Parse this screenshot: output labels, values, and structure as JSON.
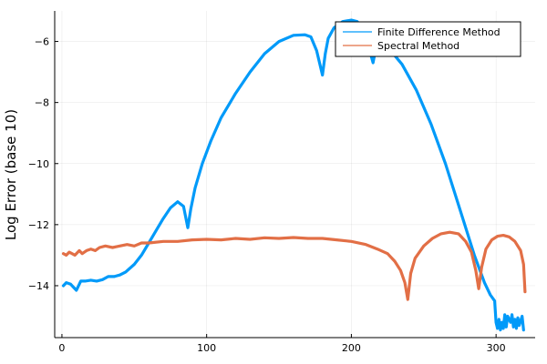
{
  "chart_data": {
    "type": "line",
    "title": "",
    "xlabel": "",
    "ylabel": "Log Error (base 10)",
    "xlim": [
      -5,
      327
    ],
    "ylim": [
      -15.7,
      -5
    ],
    "x_ticks": [
      0,
      100,
      200,
      300
    ],
    "x_tick_labels": [
      "0",
      "100",
      "200",
      "300"
    ],
    "y_ticks": [
      -14,
      -12,
      -10,
      -8,
      -6
    ],
    "y_tick_labels": [
      "−14",
      "−12",
      "−10",
      "−8",
      "−6"
    ],
    "grid": true,
    "legend_position": "top-right",
    "series": [
      {
        "name": "Finite Difference Method",
        "color": "#009af9",
        "points": [
          [
            1,
            -14.0
          ],
          [
            3,
            -13.9
          ],
          [
            6,
            -13.95
          ],
          [
            8,
            -14.05
          ],
          [
            10,
            -14.15
          ],
          [
            13,
            -13.85
          ],
          [
            16,
            -13.85
          ],
          [
            20,
            -13.82
          ],
          [
            24,
            -13.85
          ],
          [
            28,
            -13.8
          ],
          [
            32,
            -13.7
          ],
          [
            36,
            -13.7
          ],
          [
            40,
            -13.65
          ],
          [
            44,
            -13.55
          ],
          [
            50,
            -13.3
          ],
          [
            55,
            -13.0
          ],
          [
            60,
            -12.6
          ],
          [
            65,
            -12.2
          ],
          [
            70,
            -11.8
          ],
          [
            75,
            -11.45
          ],
          [
            80,
            -11.25
          ],
          [
            84,
            -11.4
          ],
          [
            87,
            -12.1
          ],
          [
            89,
            -11.5
          ],
          [
            92,
            -10.8
          ],
          [
            97,
            -10.0
          ],
          [
            103,
            -9.25
          ],
          [
            110,
            -8.5
          ],
          [
            120,
            -7.7
          ],
          [
            130,
            -7.0
          ],
          [
            140,
            -6.4
          ],
          [
            150,
            -6.0
          ],
          [
            160,
            -5.8
          ],
          [
            168,
            -5.78
          ],
          [
            172,
            -5.85
          ],
          [
            176,
            -6.3
          ],
          [
            178,
            -6.7
          ],
          [
            180,
            -7.1
          ],
          [
            182,
            -6.4
          ],
          [
            184,
            -5.9
          ],
          [
            188,
            -5.55
          ],
          [
            194,
            -5.35
          ],
          [
            200,
            -5.3
          ],
          [
            204,
            -5.35
          ],
          [
            208,
            -5.55
          ],
          [
            211,
            -5.9
          ],
          [
            213,
            -6.35
          ],
          [
            215,
            -6.7
          ],
          [
            217,
            -6.2
          ],
          [
            221,
            -6.05
          ],
          [
            228,
            -6.35
          ],
          [
            235,
            -6.75
          ],
          [
            245,
            -7.6
          ],
          [
            255,
            -8.7
          ],
          [
            265,
            -10.0
          ],
          [
            275,
            -11.5
          ],
          [
            285,
            -13.0
          ],
          [
            292,
            -13.9
          ],
          [
            296,
            -14.3
          ],
          [
            299,
            -14.5
          ],
          [
            300,
            -15.2
          ],
          [
            301,
            -15.4
          ],
          [
            302,
            -15.1
          ],
          [
            303,
            -15.45
          ],
          [
            304,
            -15.2
          ],
          [
            305,
            -15.4
          ],
          [
            306,
            -14.95
          ],
          [
            307,
            -15.35
          ],
          [
            308,
            -15.0
          ],
          [
            310,
            -15.2
          ],
          [
            311,
            -14.95
          ],
          [
            312,
            -15.35
          ],
          [
            313,
            -15.1
          ],
          [
            314,
            -15.4
          ],
          [
            315,
            -15.05
          ],
          [
            316,
            -15.3
          ],
          [
            318,
            -15.0
          ],
          [
            319,
            -15.45
          ]
        ]
      },
      {
        "name": "Spectral Method",
        "color": "#e26f46",
        "points": [
          [
            1,
            -12.95
          ],
          [
            3,
            -13.0
          ],
          [
            5,
            -12.9
          ],
          [
            7,
            -12.95
          ],
          [
            9,
            -13.0
          ],
          [
            12,
            -12.85
          ],
          [
            14,
            -12.95
          ],
          [
            17,
            -12.85
          ],
          [
            20,
            -12.8
          ],
          [
            23,
            -12.85
          ],
          [
            26,
            -12.75
          ],
          [
            30,
            -12.7
          ],
          [
            35,
            -12.75
          ],
          [
            40,
            -12.7
          ],
          [
            45,
            -12.65
          ],
          [
            50,
            -12.7
          ],
          [
            55,
            -12.6
          ],
          [
            60,
            -12.6
          ],
          [
            70,
            -12.55
          ],
          [
            80,
            -12.55
          ],
          [
            90,
            -12.5
          ],
          [
            100,
            -12.48
          ],
          [
            110,
            -12.5
          ],
          [
            120,
            -12.45
          ],
          [
            130,
            -12.48
          ],
          [
            140,
            -12.43
          ],
          [
            150,
            -12.45
          ],
          [
            160,
            -12.42
          ],
          [
            170,
            -12.45
          ],
          [
            180,
            -12.45
          ],
          [
            190,
            -12.5
          ],
          [
            200,
            -12.55
          ],
          [
            210,
            -12.65
          ],
          [
            218,
            -12.8
          ],
          [
            225,
            -12.95
          ],
          [
            230,
            -13.2
          ],
          [
            234,
            -13.5
          ],
          [
            237,
            -13.9
          ],
          [
            239,
            -14.45
          ],
          [
            241,
            -13.6
          ],
          [
            244,
            -13.1
          ],
          [
            250,
            -12.7
          ],
          [
            256,
            -12.45
          ],
          [
            262,
            -12.3
          ],
          [
            268,
            -12.25
          ],
          [
            274,
            -12.3
          ],
          [
            279,
            -12.55
          ],
          [
            283,
            -12.9
          ],
          [
            286,
            -13.5
          ],
          [
            288,
            -14.1
          ],
          [
            290,
            -13.4
          ],
          [
            293,
            -12.8
          ],
          [
            297,
            -12.5
          ],
          [
            301,
            -12.38
          ],
          [
            305,
            -12.35
          ],
          [
            309,
            -12.4
          ],
          [
            313,
            -12.55
          ],
          [
            317,
            -12.85
          ],
          [
            319,
            -13.3
          ],
          [
            320,
            -14.2
          ]
        ]
      }
    ]
  }
}
